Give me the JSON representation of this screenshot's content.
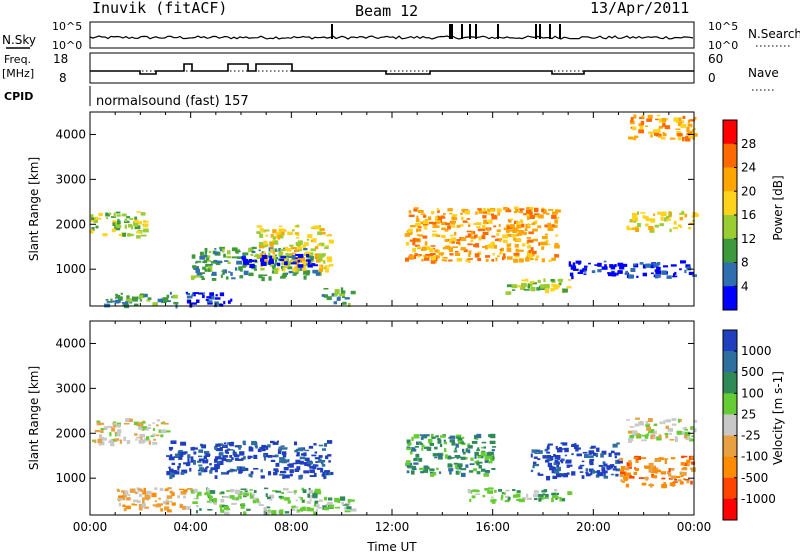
{
  "header": {
    "station": "Inuvik (fitACF)",
    "beam": "Beam 12",
    "date": "13/Apr/2011"
  },
  "status_panels": {
    "nsky_label": "N.Sky",
    "nsearch_label": "N.Search",
    "freq_label": "Freq.",
    "freq_unit": "[MHz]",
    "nave_label": "Nave",
    "cpid_label": "CPID",
    "mode_text": "normalsound (fast) 157",
    "noise_ticks": [
      "10^5",
      "10^0"
    ],
    "freq_ticks": [
      "18",
      "8"
    ],
    "nave_ticks": [
      "60",
      "0"
    ]
  },
  "chart_data": [
    {
      "type": "heatmap",
      "name": "power-panel",
      "ylabel": "Slant Range [km]",
      "xlabel": "",
      "colorbar_label": "Power [dB]",
      "colorbar_ticks": [
        "28",
        "24",
        "20",
        "16",
        "12",
        "8",
        "4"
      ],
      "colorbar_colors": [
        "#ff0000",
        "#ff6a00",
        "#ffa500",
        "#ffd21e",
        "#9acd32",
        "#3c9a3c",
        "#2f6fb0",
        "#0000ff"
      ],
      "x_range_hours": [
        0,
        24
      ],
      "ylim": [
        180,
        4500
      ],
      "yticks": [
        "1000",
        "2000",
        "3000",
        "4000"
      ],
      "xtick_labels": [
        "00:00",
        "04:00",
        "08:00",
        "12:00",
        "16:00",
        "20:00",
        "00:00"
      ],
      "blobs": [
        {
          "t0": 0.0,
          "t1": 2.2,
          "r0": 1750,
          "r1": 2300,
          "level": 4
        },
        {
          "t0": 0.5,
          "t1": 3.5,
          "r0": 200,
          "r1": 500,
          "level": 5
        },
        {
          "t0": 3.8,
          "t1": 5.8,
          "r0": 200,
          "r1": 500,
          "level": 7
        },
        {
          "t0": 4.0,
          "t1": 9.0,
          "r0": 800,
          "r1": 1500,
          "level": 5
        },
        {
          "t0": 6.5,
          "t1": 9.5,
          "r0": 1000,
          "r1": 2000,
          "level": 3
        },
        {
          "t0": 6.0,
          "t1": 9.0,
          "r0": 1100,
          "r1": 1350,
          "level": 7
        },
        {
          "t0": 9.2,
          "t1": 10.4,
          "r0": 250,
          "r1": 600,
          "level": 5
        },
        {
          "t0": 12.5,
          "t1": 18.5,
          "r0": 1200,
          "r1": 2400,
          "level": 2
        },
        {
          "t0": 16.5,
          "t1": 19.0,
          "r0": 500,
          "r1": 800,
          "level": 4
        },
        {
          "t0": 19.0,
          "t1": 24.0,
          "r0": 850,
          "r1": 1200,
          "level": 7
        },
        {
          "t0": 21.3,
          "t1": 24.0,
          "r0": 1900,
          "r1": 2300,
          "level": 3
        },
        {
          "t0": 21.3,
          "t1": 24.0,
          "r0": 3900,
          "r1": 4450,
          "level": 2
        }
      ]
    },
    {
      "type": "heatmap",
      "name": "velocity-panel",
      "ylabel": "Slant Range [km]",
      "xlabel": "Time UT",
      "colorbar_label": "Velocity [m s-1]",
      "colorbar_ticks": [
        "1000",
        "500",
        "100",
        "25",
        "-25",
        "-100",
        "-500",
        "-1000"
      ],
      "colorbar_colors": [
        "#1f3fbf",
        "#2f6f9f",
        "#2e8b57",
        "#66cc33",
        "#c8c8c8",
        "#e8a040",
        "#ff8c00",
        "#ff4500",
        "#ff0000"
      ],
      "x_range_hours": [
        0,
        24
      ],
      "ylim": [
        180,
        4500
      ],
      "yticks": [
        "1000",
        "2000",
        "3000",
        "4000"
      ],
      "xtick_labels": [
        "00:00",
        "04:00",
        "08:00",
        "12:00",
        "16:00",
        "20:00",
        "00:00"
      ],
      "blobs": [
        {
          "t0": 0.0,
          "t1": 3.0,
          "r0": 1800,
          "r1": 2350,
          "level": 4
        },
        {
          "t0": 1.0,
          "t1": 4.0,
          "r0": 300,
          "r1": 800,
          "level": 5
        },
        {
          "t0": 3.0,
          "t1": 9.5,
          "r0": 1050,
          "r1": 1850,
          "level": 0
        },
        {
          "t0": 4.0,
          "t1": 9.0,
          "r0": 250,
          "r1": 800,
          "level": 3
        },
        {
          "t0": 9.0,
          "t1": 10.4,
          "r0": 250,
          "r1": 600,
          "level": 3
        },
        {
          "t0": 12.5,
          "t1": 16.0,
          "r0": 1100,
          "r1": 2000,
          "level": 2
        },
        {
          "t0": 15.0,
          "t1": 19.0,
          "r0": 500,
          "r1": 800,
          "level": 3
        },
        {
          "t0": 17.5,
          "t1": 21.0,
          "r0": 1050,
          "r1": 1800,
          "level": 0
        },
        {
          "t0": 21.0,
          "t1": 24.0,
          "r0": 850,
          "r1": 1500,
          "level": 6
        },
        {
          "t0": 21.3,
          "t1": 24.0,
          "r0": 1850,
          "r1": 2350,
          "level": 4
        }
      ]
    }
  ]
}
